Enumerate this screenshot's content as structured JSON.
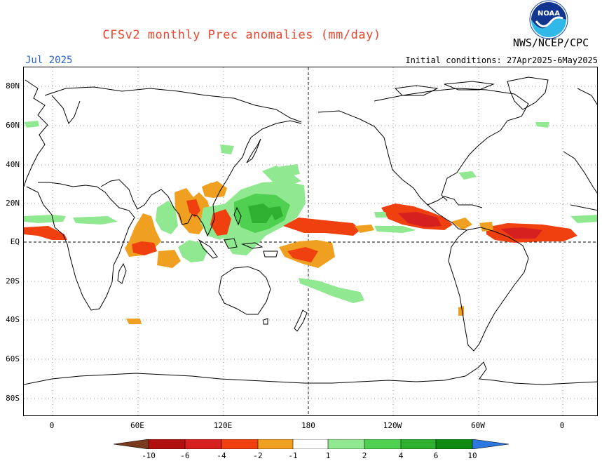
{
  "title": "CFSv2 monthly Prec anomalies (mm/day)",
  "month": "Jul 2025",
  "initial_conditions": "Initial conditions: 27Apr2025-6May2025",
  "agency": "NWS/NCEP/CPC",
  "logo_text": "NOAA",
  "lat_labels": [
    "80N",
    "60N",
    "40N",
    "20N",
    "EQ",
    "20S",
    "40S",
    "60S",
    "80S"
  ],
  "lon_labels": [
    "0",
    "60E",
    "120E",
    "180",
    "120W",
    "60W",
    "0"
  ],
  "colorbar": {
    "labels": [
      "-10",
      "-6",
      "-4",
      "-2",
      "-1",
      "1",
      "2",
      "4",
      "6",
      "10"
    ],
    "colors": [
      "#7a3a1e",
      "#b01010",
      "#d62020",
      "#f04010",
      "#f0a020",
      "#ffffff",
      "#90e890",
      "#50d050",
      "#30b030",
      "#108a10",
      "#2a78e0"
    ]
  },
  "anomaly_colors": {
    "dry_weak": "#f0a020",
    "dry_mod": "#f04010",
    "dry_strong": "#d62020",
    "wet_weak": "#90e890",
    "wet_mod": "#50d050",
    "wet_strong": "#30b030"
  }
}
